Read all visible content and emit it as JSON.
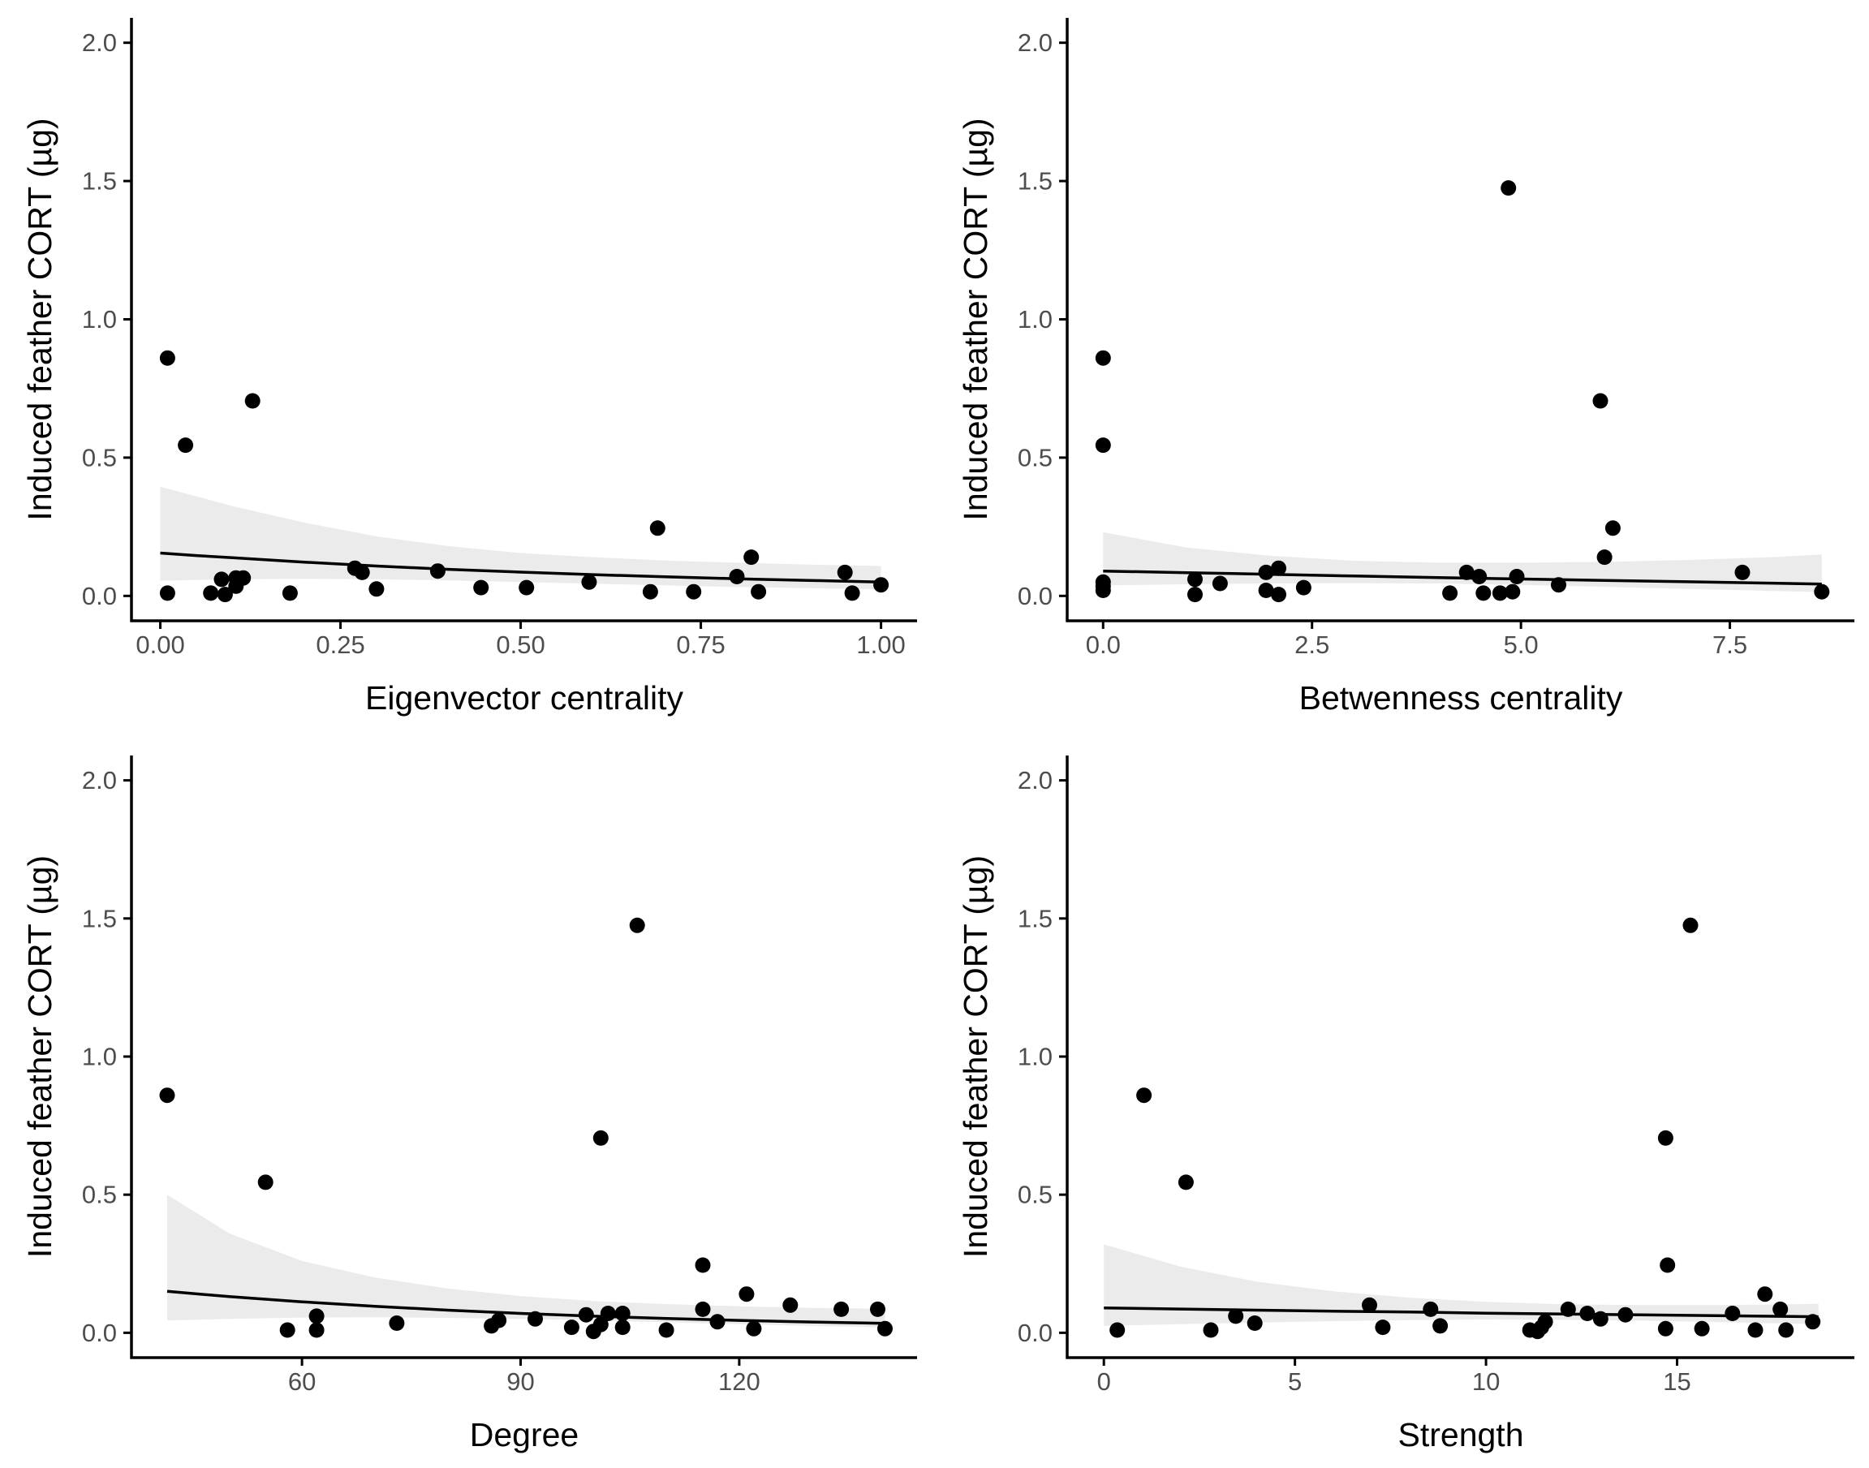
{
  "colors": {
    "point": "#000000",
    "band": "#ebebeb",
    "line": "#000000",
    "axis": "#000000",
    "tick_text": "#4d4d4d"
  },
  "chart_data": [
    {
      "type": "scatter",
      "xlabel": "Eigenvector centrality",
      "ylabel": "Induced feather CORT (µg)",
      "xlim": [
        -0.04,
        1.05
      ],
      "ylim": [
        -0.09,
        2.09
      ],
      "xticks": [
        0.0,
        0.25,
        0.5,
        0.75,
        1.0
      ],
      "xtick_labels": [
        "0.00",
        "0.25",
        "0.50",
        "0.75",
        "1.00"
      ],
      "yticks": [
        0.0,
        0.5,
        1.0,
        1.5,
        2.0
      ],
      "ytick_labels": [
        "0.0",
        "0.5",
        "1.0",
        "1.5",
        "2.0"
      ],
      "grid": false,
      "points": [
        {
          "x": 0.01,
          "y": 0.86
        },
        {
          "x": 0.01,
          "y": 0.01
        },
        {
          "x": 0.035,
          "y": 0.545
        },
        {
          "x": 0.07,
          "y": 0.01
        },
        {
          "x": 0.085,
          "y": 0.06
        },
        {
          "x": 0.09,
          "y": 0.005
        },
        {
          "x": 0.105,
          "y": 0.065
        },
        {
          "x": 0.105,
          "y": 0.035
        },
        {
          "x": 0.115,
          "y": 0.065
        },
        {
          "x": 0.128,
          "y": 0.705
        },
        {
          "x": 0.18,
          "y": 0.01
        },
        {
          "x": 0.27,
          "y": 0.1
        },
        {
          "x": 0.28,
          "y": 0.085
        },
        {
          "x": 0.3,
          "y": 0.025
        },
        {
          "x": 0.385,
          "y": 0.09
        },
        {
          "x": 0.445,
          "y": 0.03
        },
        {
          "x": 0.508,
          "y": 0.03
        },
        {
          "x": 0.595,
          "y": 0.05
        },
        {
          "x": 0.68,
          "y": 0.015
        },
        {
          "x": 0.69,
          "y": 0.245
        },
        {
          "x": 0.74,
          "y": 0.015
        },
        {
          "x": 0.8,
          "y": 0.07
        },
        {
          "x": 0.82,
          "y": 0.14
        },
        {
          "x": 0.83,
          "y": 0.015
        },
        {
          "x": 0.95,
          "y": 0.085
        },
        {
          "x": 0.96,
          "y": 0.01
        },
        {
          "x": 1.0,
          "y": 0.04
        }
      ],
      "fit": {
        "x": [
          0.0,
          0.05,
          0.1,
          0.2,
          0.3,
          0.4,
          0.5,
          0.6,
          0.7,
          0.8,
          0.9,
          1.0
        ],
        "y": [
          0.155,
          0.146,
          0.138,
          0.122,
          0.108,
          0.096,
          0.086,
          0.077,
          0.069,
          0.062,
          0.056,
          0.05
        ],
        "lower": [
          0.055,
          0.058,
          0.06,
          0.062,
          0.06,
          0.056,
          0.05,
          0.044,
          0.038,
          0.032,
          0.028,
          0.024
        ],
        "upper": [
          0.395,
          0.36,
          0.325,
          0.265,
          0.215,
          0.18,
          0.155,
          0.14,
          0.128,
          0.12,
          0.113,
          0.108
        ]
      }
    },
    {
      "type": "scatter",
      "xlabel": "Betwenness centrality",
      "ylabel": "Induced feather CORT (µg)",
      "xlim": [
        -0.43,
        8.99
      ],
      "ylim": [
        -0.09,
        2.09
      ],
      "xticks": [
        0.0,
        2.5,
        5.0,
        7.5
      ],
      "xtick_labels": [
        "0.0",
        "2.5",
        "5.0",
        "7.5"
      ],
      "yticks": [
        0.0,
        0.5,
        1.0,
        1.5,
        2.0
      ],
      "ytick_labels": [
        "0.0",
        "0.5",
        "1.0",
        "1.5",
        "2.0"
      ],
      "grid": false,
      "points": [
        {
          "x": 0.0,
          "y": 0.86
        },
        {
          "x": 0.0,
          "y": 0.545
        },
        {
          "x": 0.0,
          "y": 0.05
        },
        {
          "x": 0.0,
          "y": 0.035
        },
        {
          "x": 0.0,
          "y": 0.02
        },
        {
          "x": 1.1,
          "y": 0.06
        },
        {
          "x": 1.1,
          "y": 0.005
        },
        {
          "x": 1.4,
          "y": 0.045
        },
        {
          "x": 1.95,
          "y": 0.085
        },
        {
          "x": 1.95,
          "y": 0.02
        },
        {
          "x": 2.1,
          "y": 0.1
        },
        {
          "x": 2.1,
          "y": 0.005
        },
        {
          "x": 2.4,
          "y": 0.03
        },
        {
          "x": 4.15,
          "y": 0.01
        },
        {
          "x": 4.35,
          "y": 0.085
        },
        {
          "x": 4.5,
          "y": 0.07
        },
        {
          "x": 4.55,
          "y": 0.01
        },
        {
          "x": 4.75,
          "y": 0.01
        },
        {
          "x": 4.85,
          "y": 1.475
        },
        {
          "x": 4.9,
          "y": 0.015
        },
        {
          "x": 4.95,
          "y": 0.07
        },
        {
          "x": 5.45,
          "y": 0.04
        },
        {
          "x": 5.95,
          "y": 0.705
        },
        {
          "x": 6.0,
          "y": 0.14
        },
        {
          "x": 6.1,
          "y": 0.245
        },
        {
          "x": 7.65,
          "y": 0.085
        },
        {
          "x": 8.6,
          "y": 0.015
        }
      ],
      "fit": {
        "x": [
          0.0,
          1.0,
          2.0,
          3.0,
          4.0,
          5.0,
          6.0,
          7.0,
          8.0,
          8.6
        ],
        "y": [
          0.09,
          0.084,
          0.078,
          0.072,
          0.066,
          0.061,
          0.056,
          0.051,
          0.046,
          0.043
        ],
        "lower": [
          0.038,
          0.042,
          0.045,
          0.046,
          0.045,
          0.04,
          0.033,
          0.025,
          0.018,
          0.014
        ],
        "upper": [
          0.23,
          0.175,
          0.145,
          0.127,
          0.12,
          0.12,
          0.123,
          0.13,
          0.14,
          0.15
        ]
      }
    },
    {
      "type": "scatter",
      "xlabel": "Degree",
      "ylabel": "Induced feather CORT (µg)",
      "xlim": [
        36.6,
        144.4
      ],
      "ylim": [
        -0.09,
        2.09
      ],
      "xticks": [
        60,
        90,
        120
      ],
      "xtick_labels": [
        "60",
        "90",
        "120"
      ],
      "yticks": [
        0.0,
        0.5,
        1.0,
        1.5,
        2.0
      ],
      "ytick_labels": [
        "0.0",
        "0.5",
        "1.0",
        "1.5",
        "2.0"
      ],
      "grid": false,
      "points": [
        {
          "x": 41.5,
          "y": 0.86
        },
        {
          "x": 55,
          "y": 0.545
        },
        {
          "x": 58,
          "y": 0.01
        },
        {
          "x": 62,
          "y": 0.06
        },
        {
          "x": 62,
          "y": 0.01
        },
        {
          "x": 73,
          "y": 0.035
        },
        {
          "x": 86,
          "y": 0.025
        },
        {
          "x": 87,
          "y": 0.045
        },
        {
          "x": 92,
          "y": 0.05
        },
        {
          "x": 97,
          "y": 0.02
        },
        {
          "x": 99,
          "y": 0.065
        },
        {
          "x": 100,
          "y": 0.005
        },
        {
          "x": 101,
          "y": 0.705
        },
        {
          "x": 101,
          "y": 0.03
        },
        {
          "x": 102,
          "y": 0.07
        },
        {
          "x": 104,
          "y": 0.07
        },
        {
          "x": 104,
          "y": 0.02
        },
        {
          "x": 106,
          "y": 1.475
        },
        {
          "x": 110,
          "y": 0.01
        },
        {
          "x": 115,
          "y": 0.245
        },
        {
          "x": 115,
          "y": 0.085
        },
        {
          "x": 117,
          "y": 0.04
        },
        {
          "x": 121,
          "y": 0.14
        },
        {
          "x": 122,
          "y": 0.015
        },
        {
          "x": 127,
          "y": 0.1
        },
        {
          "x": 134,
          "y": 0.085
        },
        {
          "x": 139,
          "y": 0.085
        },
        {
          "x": 140,
          "y": 0.015
        }
      ],
      "fit": {
        "x": [
          41.5,
          50,
          60,
          70,
          80,
          90,
          100,
          110,
          120,
          130,
          140
        ],
        "y": [
          0.15,
          0.131,
          0.112,
          0.096,
          0.082,
          0.07,
          0.06,
          0.052,
          0.045,
          0.039,
          0.034
        ],
        "lower": [
          0.045,
          0.05,
          0.055,
          0.056,
          0.054,
          0.05,
          0.045,
          0.038,
          0.031,
          0.025,
          0.02
        ],
        "upper": [
          0.5,
          0.36,
          0.26,
          0.2,
          0.16,
          0.133,
          0.115,
          0.104,
          0.096,
          0.09,
          0.087
        ]
      }
    },
    {
      "type": "scatter",
      "xlabel": "Strength",
      "ylabel": "Induced feather CORT (µg)",
      "xlim": [
        -0.96,
        19.64
      ],
      "ylim": [
        -0.09,
        2.09
      ],
      "xticks": [
        0,
        5,
        10,
        15
      ],
      "xtick_labels": [
        "0",
        "5",
        "10",
        "15"
      ],
      "yticks": [
        0.0,
        0.5,
        1.0,
        1.5,
        2.0
      ],
      "ytick_labels": [
        "0.0",
        "0.5",
        "1.0",
        "1.5",
        "2.0"
      ],
      "grid": false,
      "points": [
        {
          "x": 0.35,
          "y": 0.01
        },
        {
          "x": 1.05,
          "y": 0.86
        },
        {
          "x": 2.15,
          "y": 0.545
        },
        {
          "x": 2.8,
          "y": 0.01
        },
        {
          "x": 3.45,
          "y": 0.06
        },
        {
          "x": 3.95,
          "y": 0.035
        },
        {
          "x": 6.95,
          "y": 0.1
        },
        {
          "x": 7.3,
          "y": 0.02
        },
        {
          "x": 8.55,
          "y": 0.085
        },
        {
          "x": 8.8,
          "y": 0.025
        },
        {
          "x": 11.15,
          "y": 0.01
        },
        {
          "x": 11.35,
          "y": 0.005
        },
        {
          "x": 11.45,
          "y": 0.02
        },
        {
          "x": 11.55,
          "y": 0.04
        },
        {
          "x": 12.15,
          "y": 0.085
        },
        {
          "x": 12.65,
          "y": 0.07
        },
        {
          "x": 13.0,
          "y": 0.05
        },
        {
          "x": 13.65,
          "y": 0.065
        },
        {
          "x": 14.7,
          "y": 0.705
        },
        {
          "x": 14.75,
          "y": 0.245
        },
        {
          "x": 14.7,
          "y": 0.015
        },
        {
          "x": 15.35,
          "y": 1.475
        },
        {
          "x": 15.65,
          "y": 0.015
        },
        {
          "x": 16.45,
          "y": 0.07
        },
        {
          "x": 17.05,
          "y": 0.01
        },
        {
          "x": 17.3,
          "y": 0.14
        },
        {
          "x": 17.7,
          "y": 0.085
        },
        {
          "x": 17.85,
          "y": 0.01
        },
        {
          "x": 18.55,
          "y": 0.04
        }
      ],
      "fit": {
        "x": [
          0.0,
          2,
          4,
          6,
          8,
          10,
          12,
          14,
          16,
          18,
          18.7
        ],
        "y": [
          0.09,
          0.086,
          0.082,
          0.078,
          0.075,
          0.071,
          0.068,
          0.065,
          0.062,
          0.059,
          0.058
        ],
        "lower": [
          0.025,
          0.031,
          0.037,
          0.042,
          0.046,
          0.048,
          0.047,
          0.044,
          0.039,
          0.033,
          0.031
        ],
        "upper": [
          0.32,
          0.24,
          0.185,
          0.15,
          0.127,
          0.112,
          0.103,
          0.1,
          0.1,
          0.103,
          0.105
        ]
      }
    }
  ]
}
